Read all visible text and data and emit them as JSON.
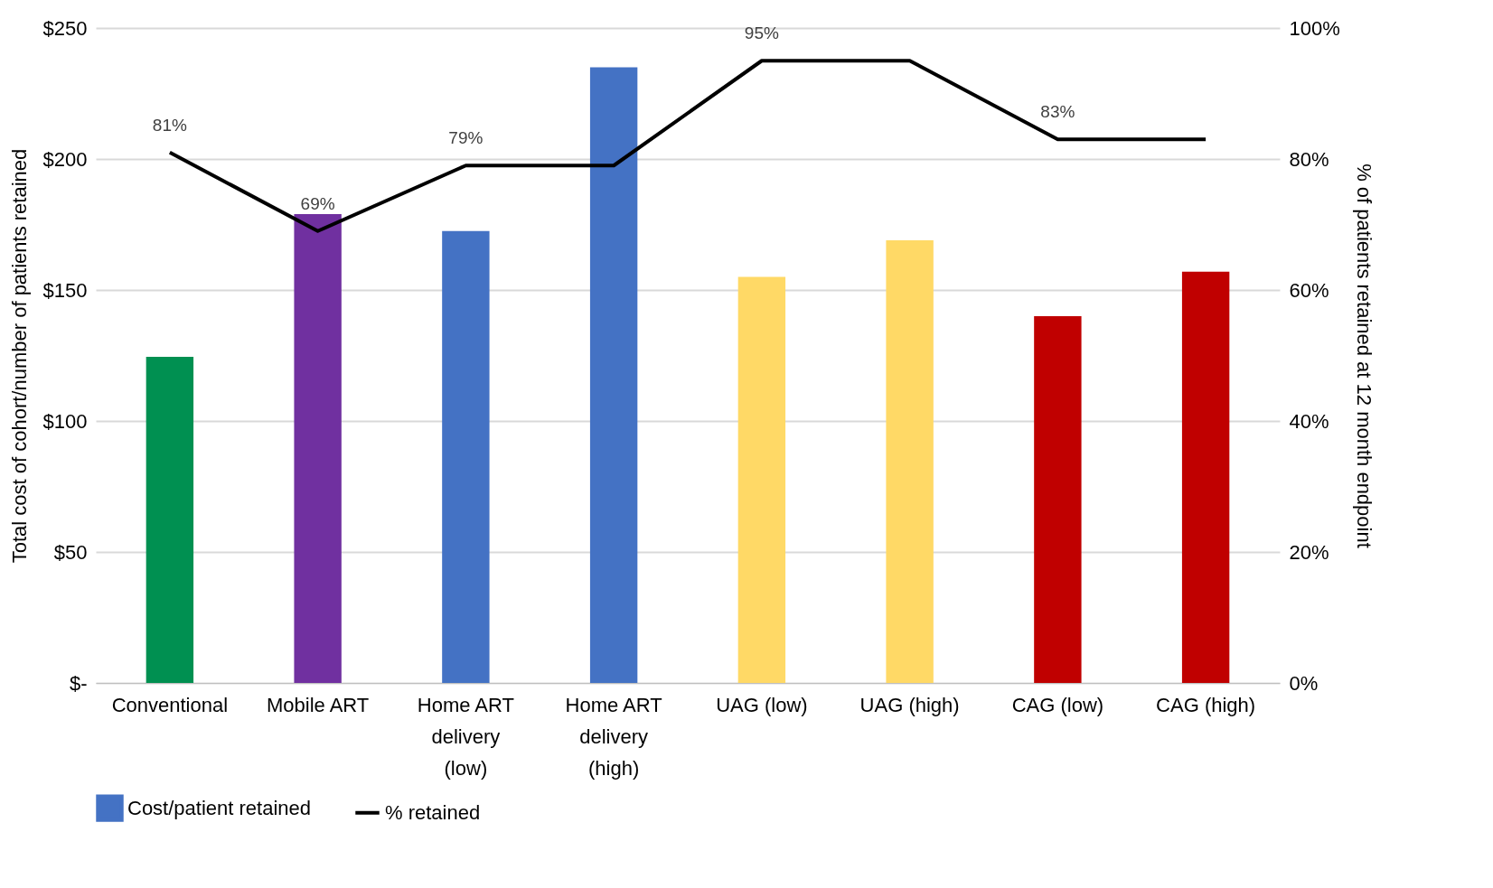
{
  "chart_data": {
    "type": "bar",
    "categories": [
      "Conventional",
      "Mobile ART",
      "Home ART delivery (low)",
      "Home ART delivery (high)",
      "UAG (low)",
      "UAG (high)",
      "CAG (low)",
      "CAG (high)"
    ],
    "ylabel": "Total cost of cohort/number of patients retained",
    "y2label": "% of patients retained at 12 month endpoint",
    "ylim": [
      0,
      250
    ],
    "yticks": [
      {
        "value": 0,
        "label": "$-"
      },
      {
        "value": 50,
        "label": "$50"
      },
      {
        "value": 100,
        "label": "$100"
      },
      {
        "value": 150,
        "label": "$150"
      },
      {
        "value": 200,
        "label": "$200"
      },
      {
        "value": 250,
        "label": "$250"
      }
    ],
    "y2lim": [
      0,
      100
    ],
    "y2ticks": [
      {
        "value": 0,
        "label": "0%"
      },
      {
        "value": 20,
        "label": "20%"
      },
      {
        "value": 40,
        "label": "40%"
      },
      {
        "value": 60,
        "label": "60%"
      },
      {
        "value": 80,
        "label": "80%"
      },
      {
        "value": 100,
        "label": "100%"
      }
    ],
    "grid": "y",
    "legend": "bottom",
    "series": [
      {
        "name": "Cost/patient retained",
        "color": "#4472c4",
        "colors": [
          "#009051",
          "#7030a0",
          "#4472c4",
          "#4472c4",
          "#ffd966",
          "#ffd966",
          "#c00000",
          "#c00000"
        ],
        "values": [
          124.5,
          179,
          172.5,
          235,
          155,
          169,
          140,
          157
        ]
      },
      {
        "name": "% retained",
        "type": "line",
        "axis": "y2",
        "color": "#000000",
        "marker": "none",
        "line_style": "solid",
        "values": [
          81,
          69,
          79,
          79,
          95,
          95,
          83,
          83
        ],
        "value_labels": [
          "81%",
          "69%",
          "79%",
          null,
          "95%",
          null,
          "83%",
          null
        ]
      }
    ]
  }
}
